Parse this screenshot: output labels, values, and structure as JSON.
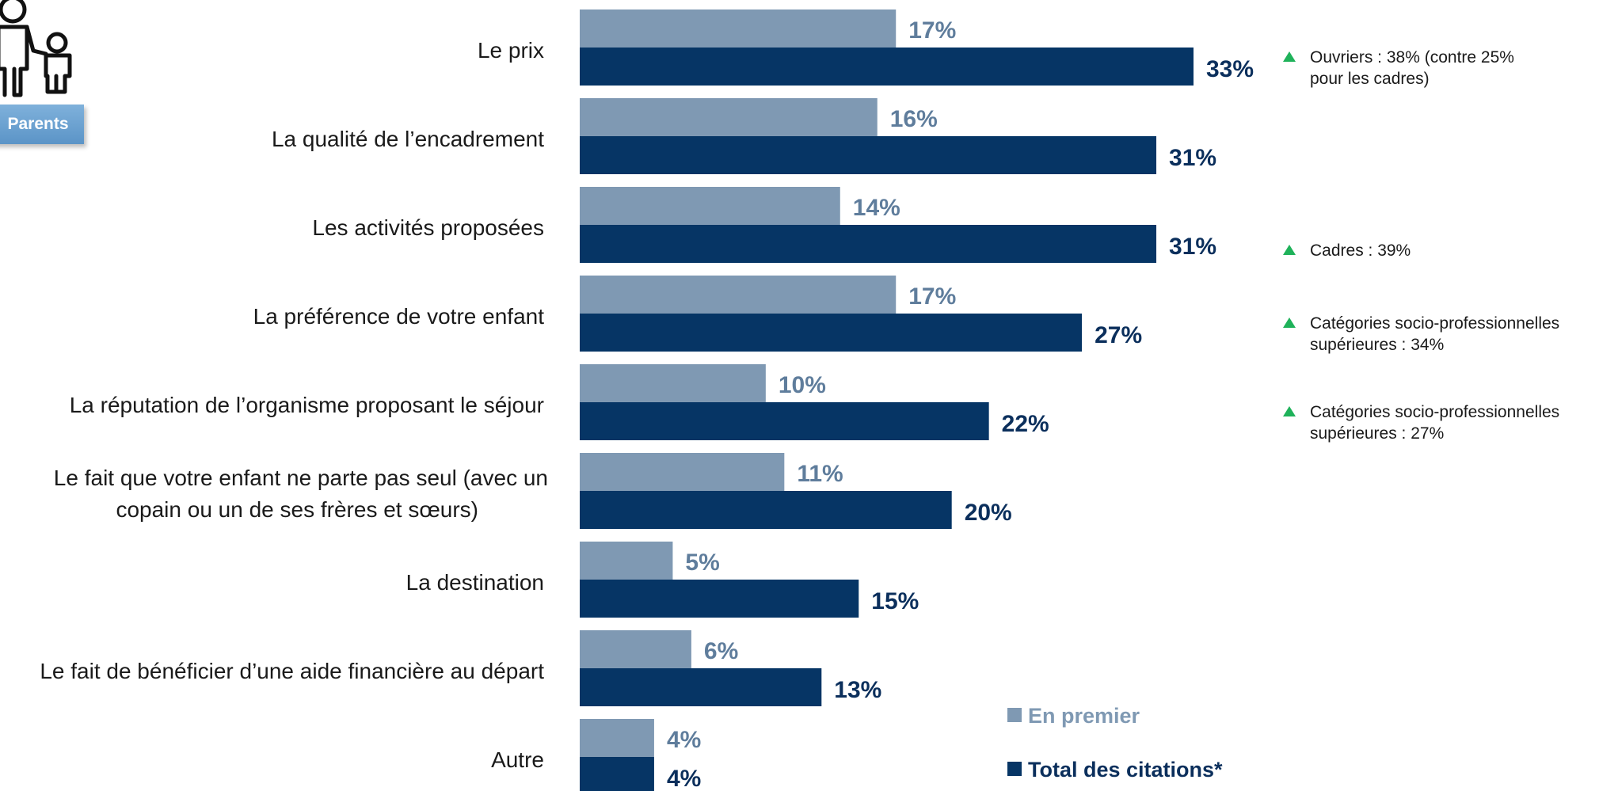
{
  "header": {
    "badge_label": "Parents",
    "icon": "parent-child-icon"
  },
  "colors": {
    "first": "#7f99b3",
    "total": "#063565",
    "up_arrow": "#1fb25a",
    "first_text": "#5f7d9c",
    "total_text": "#0b2f5c"
  },
  "chart_data": {
    "type": "bar",
    "orientation": "horizontal",
    "categories": [
      [
        "Le prix"
      ],
      [
        "La qualité de l’encadrement"
      ],
      [
        "Les activités proposées"
      ],
      [
        "La préférence de votre enfant"
      ],
      [
        "La réputation de l’organisme proposant le séjour"
      ],
      [
        "Le fait que votre enfant ne parte pas seul (avec un",
        "copain ou un de ses frères et sœurs)"
      ],
      [
        "La destination"
      ],
      [
        "Le fait de bénéficier d’une aide financière au départ"
      ],
      [
        "Autre"
      ]
    ],
    "series": [
      {
        "name": "En premier",
        "values": [
          17,
          16,
          14,
          17,
          10,
          11,
          5,
          6,
          4
        ],
        "labels": [
          "17%",
          "16%",
          "14%",
          "17%",
          "10%",
          "11%",
          "5%",
          "6%",
          "4%"
        ]
      },
      {
        "name": "Total des citations*",
        "values": [
          33,
          31,
          31,
          27,
          22,
          20,
          15,
          13,
          4
        ],
        "labels": [
          "33%",
          "31%",
          "31%",
          "27%",
          "22%",
          "20%",
          "15%",
          "13%",
          "4%"
        ]
      }
    ],
    "xlim": [
      0,
      33
    ],
    "legend": "bottom-right",
    "grid": false,
    "annotations": [
      {
        "category_index": 0,
        "lines": [
          "Ouvriers : 38% (contre 25%",
          "pour les cadres)"
        ]
      },
      {
        "category_index": 2,
        "lines": [
          "Cadres : 39%"
        ]
      },
      {
        "category_index": 3,
        "lines": [
          "Catégories socio-professionnelles",
          "supérieures : 34%"
        ]
      },
      {
        "category_index": 4,
        "lines": [
          "Catégories socio-professionnelles",
          "supérieures : 27%"
        ]
      }
    ]
  }
}
